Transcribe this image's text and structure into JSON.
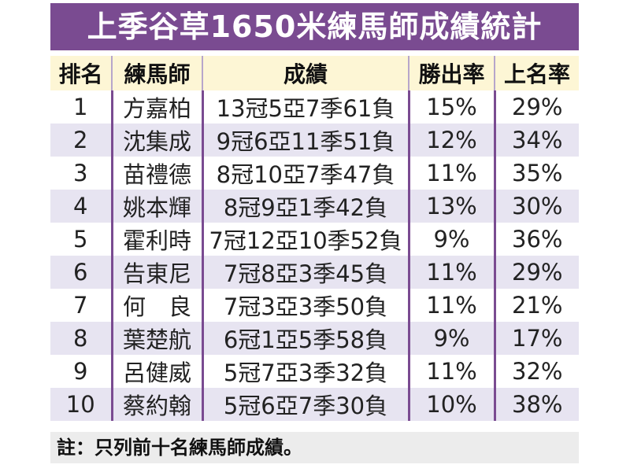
{
  "title": "上季谷草1650米練馬師成績統計",
  "headers": [
    "排名",
    "練馬師",
    "成績",
    "勝出率",
    "上名率"
  ],
  "rows": [
    {
      "rank": "1",
      "trainer": "方嘉柏",
      "record": "13冠5亞7季61負",
      "win_rate": "15%",
      "place_rate": "29%"
    },
    {
      "rank": "2",
      "trainer": "沈集成",
      "record": "9冠6亞11季51負",
      "win_rate": "12%",
      "place_rate": "34%"
    },
    {
      "rank": "3",
      "trainer": "苗禮德",
      "record": "8冠10亞7季47負",
      "win_rate": "11%",
      "place_rate": "35%"
    },
    {
      "rank": "4",
      "trainer": "姚本輝",
      "record": "8冠9亞1季42負",
      "win_rate": "13%",
      "place_rate": "30%"
    },
    {
      "rank": "5",
      "trainer": "霍利時",
      "record": "7冠12亞10季52負",
      "win_rate": "9%",
      "place_rate": "36%"
    },
    {
      "rank": "6",
      "trainer": "告東尼",
      "record": "7冠8亞3季45負",
      "win_rate": "11%",
      "place_rate": "29%"
    },
    {
      "rank": "7",
      "trainer": "何　良",
      "record": "7冠3亞3季50負",
      "win_rate": "11%",
      "place_rate": "21%"
    },
    {
      "rank": "8",
      "trainer": "葉楚航",
      "record": "6冠1亞5季58負",
      "win_rate": "9%",
      "place_rate": "17%"
    },
    {
      "rank": "9",
      "trainer": "呂健威",
      "record": "5冠7亞3季32負",
      "win_rate": "11%",
      "place_rate": "32%"
    },
    {
      "rank": "10",
      "trainer": "蔡約翰",
      "record": "5冠6亞7季30負",
      "win_rate": "10%",
      "place_rate": "38%"
    }
  ],
  "note": "註：只列前十名練馬師成績。",
  "colors": {
    "title_bg": "#7a4b91",
    "header_bg": "#fdf6d5",
    "row_alt_bg": "#e7e4f1",
    "note_bg": "#ececec"
  }
}
